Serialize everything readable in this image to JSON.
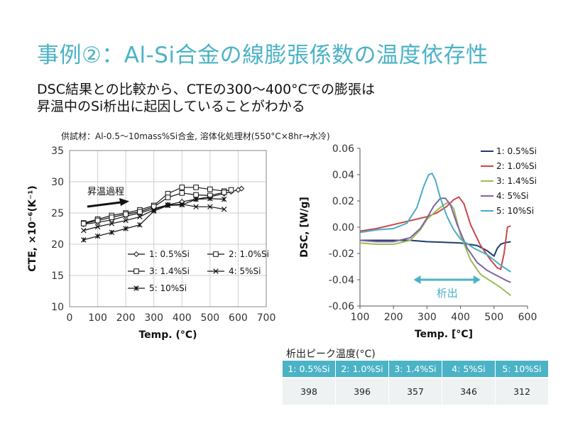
{
  "slide": {
    "title": "事例②：Al-Si合金の線膨張係数の温度依存性",
    "subtitle_line1": "DSC結果との比較から、CTEの300～400°Cでの膨張は",
    "subtitle_line2": "昇温中のSi析出に起因していることがわかる",
    "sample_note": "供試材：Al-0.5～10mass%Si合金, 溶体化処理材(550°C×8hr→水冷)"
  },
  "colors": {
    "accent": "#4bb3c6"
  },
  "chart_data": [
    {
      "type": "line",
      "title": "",
      "xlabel": "Temp. (°C)",
      "ylabel": "CTE, ×10⁻⁶(K⁻¹)",
      "xlim": [
        0,
        700
      ],
      "ylim": [
        10,
        35
      ],
      "xticks": [
        0,
        100,
        200,
        300,
        400,
        500,
        600,
        700
      ],
      "yticks": [
        10,
        15,
        20,
        25,
        30,
        35
      ],
      "grid": true,
      "annotation": "昇温過程",
      "series": [
        {
          "name": "1: 0.5%Si",
          "marker": "diamond",
          "x": [
            50,
            100,
            150,
            200,
            250,
            300,
            350,
            400,
            450,
            500,
            550,
            575,
            600,
            612
          ],
          "y": [
            23.2,
            23.5,
            23.9,
            24.5,
            25.0,
            25.7,
            26.3,
            26.8,
            27.2,
            27.6,
            28.1,
            28.4,
            28.7,
            28.9
          ]
        },
        {
          "name": "2: 1.0%Si",
          "marker": "square",
          "x": [
            50,
            100,
            150,
            200,
            250,
            300,
            350,
            400,
            450,
            500,
            550,
            575
          ],
          "y": [
            23.4,
            24.0,
            24.6,
            25.0,
            25.5,
            26.2,
            28.1,
            29.1,
            29.1,
            28.8,
            28.5,
            28.7
          ]
        },
        {
          "name": "3: 1.4%Si",
          "marker": "square",
          "x": [
            50,
            100,
            150,
            200,
            250,
            300,
            350,
            400,
            450,
            500,
            550
          ],
          "y": [
            23.3,
            23.8,
            24.3,
            24.8,
            25.2,
            26.0,
            27.5,
            28.2,
            27.9,
            27.8,
            28.3
          ]
        },
        {
          "name": "4: 5%Si",
          "marker": "x",
          "x": [
            50,
            100,
            150,
            200,
            250,
            300,
            350,
            400,
            450,
            500,
            550
          ],
          "y": [
            22.2,
            22.8,
            23.3,
            23.8,
            24.4,
            25.5,
            26.3,
            26.4,
            26.0,
            26.0,
            25.6
          ]
        },
        {
          "name": "5: 10%Si",
          "marker": "star",
          "x": [
            50,
            100,
            150,
            200,
            250,
            300,
            350,
            400,
            450,
            500,
            550
          ],
          "y": [
            20.7,
            21.3,
            21.9,
            22.5,
            23.1,
            25.3,
            26.2,
            26.3,
            27.2,
            27.3,
            27.2
          ]
        }
      ]
    },
    {
      "type": "line",
      "title": "",
      "xlabel": "Temp. [°C]",
      "ylabel": "DSC, [W/g]",
      "xlim": [
        100,
        600
      ],
      "ylim": [
        -0.06,
        0.06
      ],
      "xticks": [
        100,
        200,
        300,
        400,
        500,
        600
      ],
      "yticks": [
        -0.06,
        -0.04,
        -0.02,
        0.0,
        0.02,
        0.04,
        0.06
      ],
      "ytick_labels": [
        "-0.06",
        "-0.04",
        "-0.02",
        "0.00",
        "0.02",
        "0.04",
        "0.06"
      ],
      "grid": false,
      "annotation": "析出",
      "annotation_range": [
        260,
        460
      ],
      "series": [
        {
          "name": "1: 0.5%Si",
          "color": "#1f3e6e",
          "x": [
            100,
            150,
            200,
            250,
            300,
            350,
            400,
            450,
            480,
            500,
            510,
            520,
            530,
            550
          ],
          "y": [
            -0.01,
            -0.01,
            -0.01,
            -0.01,
            -0.011,
            -0.0115,
            -0.012,
            -0.014,
            -0.018,
            -0.022,
            -0.016,
            -0.013,
            -0.012,
            -0.011
          ]
        },
        {
          "name": "2: 1.0%Si",
          "color": "#c9484a",
          "x": [
            100,
            150,
            200,
            250,
            300,
            330,
            360,
            380,
            395,
            410,
            430,
            460,
            490,
            510,
            520,
            530,
            540,
            550
          ],
          "y": [
            -0.003,
            -0.001,
            0.002,
            0.005,
            0.008,
            0.011,
            0.016,
            0.021,
            0.023,
            0.018,
            0.002,
            -0.014,
            -0.025,
            -0.031,
            -0.032,
            -0.02,
            0.0,
            0.001
          ]
        },
        {
          "name": "3: 1.4%Si",
          "color": "#9bbb59",
          "x": [
            100,
            150,
            200,
            250,
            280,
            300,
            330,
            350,
            365,
            380,
            400,
            430,
            460,
            490,
            520,
            540,
            550
          ],
          "y": [
            -0.012,
            -0.013,
            -0.013,
            -0.01,
            -0.002,
            0.006,
            0.013,
            0.017,
            0.019,
            0.014,
            -0.006,
            -0.025,
            -0.036,
            -0.041,
            -0.046,
            -0.05,
            -0.052
          ]
        },
        {
          "name": "4: 5%Si",
          "color": "#8064a2",
          "x": [
            100,
            150,
            200,
            250,
            280,
            300,
            320,
            340,
            355,
            370,
            390,
            420,
            450,
            480,
            510,
            540,
            550
          ],
          "y": [
            -0.01,
            -0.011,
            -0.011,
            -0.008,
            -0.001,
            0.007,
            0.016,
            0.022,
            0.022,
            0.017,
            0.002,
            -0.016,
            -0.027,
            -0.033,
            -0.037,
            -0.041,
            -0.042
          ]
        },
        {
          "name": "5: 10%Si",
          "color": "#4bacc6",
          "x": [
            100,
            150,
            200,
            240,
            270,
            290,
            305,
            315,
            325,
            340,
            360,
            380,
            400,
            440,
            480,
            520,
            550
          ],
          "y": [
            -0.004,
            -0.002,
            -0.001,
            0.003,
            0.015,
            0.031,
            0.04,
            0.041,
            0.036,
            0.022,
            0.008,
            -0.002,
            -0.009,
            -0.016,
            -0.021,
            -0.029,
            -0.034
          ]
        }
      ]
    }
  ],
  "peak_table": {
    "title": "析出ピーク温度(°C)",
    "headers": [
      "1: 0.5%Si",
      "2: 1.0%Si",
      "3: 1.4%Si",
      "4: 5%Si",
      "5: 10%Si"
    ],
    "values": [
      "398",
      "396",
      "357",
      "346",
      "312"
    ]
  }
}
